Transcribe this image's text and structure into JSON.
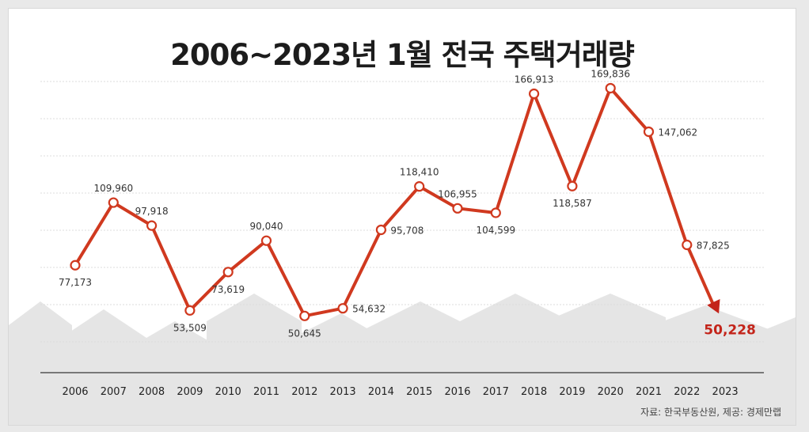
{
  "title": "2006~2023년 1월 전국 주택거래량",
  "source": "자료: 한국부동산원, 제공: 경제만랩",
  "colors": {
    "line": "#d0391f",
    "last_label": "#c3241a",
    "grid": "#dcdcdc",
    "axis": "#555555",
    "houses": "#e5e5e5"
  },
  "chart_data": {
    "type": "line",
    "title": "2006~2023년 1월 전국 주택거래량",
    "xlabel": "",
    "ylabel": "",
    "categories": [
      "2006",
      "2007",
      "2008",
      "2009",
      "2010",
      "2011",
      "2012",
      "2013",
      "2014",
      "2015",
      "2016",
      "2017",
      "2018",
      "2019",
      "2020",
      "2021",
      "2022",
      "2023"
    ],
    "values": [
      77173,
      109960,
      97918,
      53509,
      73619,
      90040,
      50645,
      54632,
      95708,
      118410,
      106955,
      104599,
      166913,
      118587,
      169836,
      147062,
      87825,
      50228
    ],
    "value_labels": [
      "77,173",
      "109,960",
      "97,918",
      "53,509",
      "73,619",
      "90,040",
      "50,645",
      "54,632",
      "95,708",
      "118,410",
      "106,955",
      "104,599",
      "166,913",
      "118,587",
      "169,836",
      "147,062",
      "87,825",
      "50,228"
    ],
    "label_positions": [
      "below",
      "above",
      "above",
      "below",
      "below",
      "above",
      "below",
      "right",
      "right",
      "above",
      "above",
      "below",
      "above",
      "below",
      "above",
      "right",
      "right",
      "below"
    ],
    "grid": true,
    "highlight_last": true
  }
}
